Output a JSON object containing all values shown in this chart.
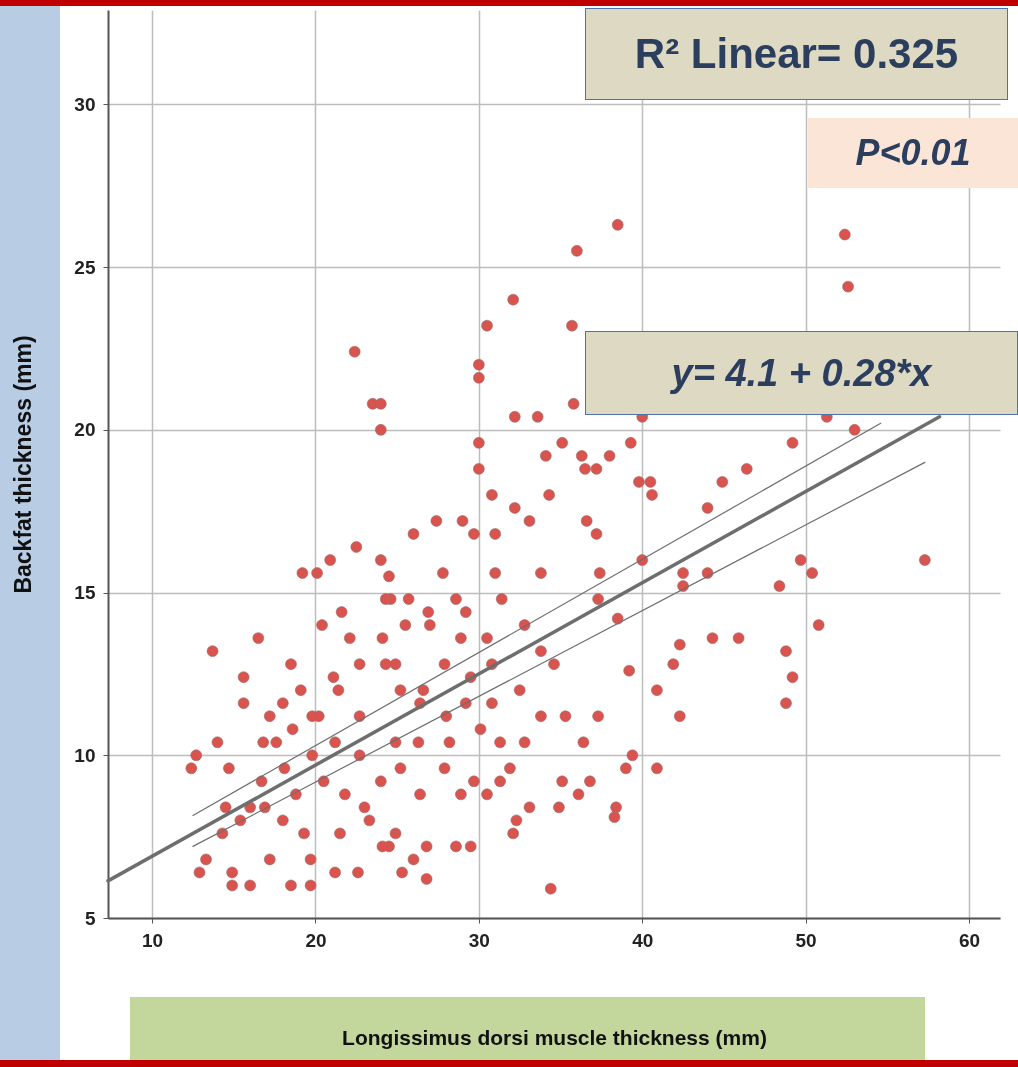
{
  "chart_data": {
    "type": "scatter",
    "xlabel": "Longissimus dorsi muscle thickness (mm)",
    "ylabel": "Backfat thickness (mm)",
    "annotations": [
      "R² Linear= 0.325",
      "P<0.01",
      "y= 4.1 + 0.28*x"
    ],
    "xlim": [
      7.3,
      61.9
    ],
    "ylim": [
      5,
      32.9
    ],
    "xticks": [
      10,
      20,
      30,
      40,
      50,
      60
    ],
    "yticks": [
      5,
      10,
      15,
      20,
      25,
      30
    ],
    "grid": true,
    "marker": "circle",
    "series": [
      {
        "color": "#d9534f",
        "x": [
          38.5,
          36.0,
          52.4,
          52.6,
          32.1,
          30.5,
          35.7,
          22.4,
          30.0,
          30.0,
          23.5,
          24.0,
          24.0,
          32.2,
          33.6,
          35.8,
          40.0,
          30.0,
          30.0,
          35.1,
          39.3,
          38.0,
          36.3,
          34.1,
          30.8,
          34.3,
          36.5,
          37.2,
          39.8,
          40.5,
          40.6,
          46.4,
          44.9,
          44.0,
          49.2,
          53.0,
          51.3,
          32.2,
          33.1,
          36.6,
          37.2,
          27.4,
          29.0,
          26.0,
          29.7,
          31.0,
          22.5,
          20.9,
          24.0,
          19.2,
          20.1,
          24.5,
          27.8,
          33.8,
          31.0,
          37.4,
          40.0,
          49.7,
          50.4,
          57.3,
          48.4,
          42.5,
          44.0,
          42.5,
          50.8,
          24.6,
          25.7,
          26.9,
          21.6,
          20.4,
          16.5,
          13.7,
          18.5,
          22.1,
          24.1,
          28.9,
          30.5,
          32.8,
          33.8,
          34.6,
          37.3,
          38.5,
          39.2,
          44.3,
          42.3,
          45.9,
          41.9,
          48.8,
          49.2,
          48.8,
          40.9,
          42.3,
          15.6,
          15.6,
          17.2,
          12.4,
          12.7,
          14.0,
          14.7,
          16.8,
          17.6,
          18.6,
          20.2,
          21.4,
          22.7,
          24.9,
          26.6,
          28.0,
          30.8,
          32.5,
          35.3,
          36.4,
          37.3,
          39.4,
          39.0,
          40.9,
          35.1,
          36.8,
          36.1,
          38.3,
          38.4,
          34.9,
          33.1,
          32.3,
          32.1,
          34.4,
          30.5,
          29.7,
          28.9,
          29.5,
          28.6,
          26.8,
          26.8,
          26.0,
          25.3,
          24.5,
          24.1,
          22.6,
          21.2,
          19.7,
          19.7,
          18.5,
          17.2,
          16.0,
          14.9,
          14.9,
          12.9,
          13.3,
          14.3,
          15.4,
          16.9,
          18.8,
          20.5,
          21.8,
          23.0,
          24.0,
          25.2,
          26.4,
          27.9,
          16.7,
          18.0,
          19.3,
          21.5,
          23.3,
          24.9,
          31.3,
          31.9,
          28.2,
          26.3,
          24.9,
          22.7,
          21.2,
          19.8,
          18.1,
          16.0,
          14.5,
          26.4,
          25.2,
          24.3,
          22.7,
          21.1,
          19.1,
          18.0,
          19.8,
          27.9,
          29.5,
          30.8,
          29.2,
          30.1,
          31.3,
          32.8,
          33.8,
          27.0,
          25.5,
          28.6,
          29.2,
          31.4,
          24.3
        ],
        "values": [
          26.3,
          25.5,
          26.0,
          24.4,
          24.0,
          23.2,
          23.2,
          22.4,
          22.0,
          21.6,
          20.8,
          20.8,
          20.0,
          20.4,
          20.4,
          20.8,
          20.4,
          19.6,
          18.8,
          19.6,
          19.6,
          19.2,
          19.2,
          19.2,
          18.0,
          18.0,
          18.8,
          18.8,
          18.4,
          18.4,
          18.0,
          18.8,
          18.4,
          17.6,
          19.6,
          20.0,
          20.4,
          17.6,
          17.2,
          17.2,
          16.8,
          17.2,
          17.2,
          16.8,
          16.8,
          16.8,
          16.4,
          16.0,
          16.0,
          15.6,
          15.6,
          15.5,
          15.6,
          15.6,
          15.6,
          15.6,
          16.0,
          16.0,
          15.6,
          16.0,
          15.2,
          15.6,
          15.6,
          15.2,
          14.0,
          14.8,
          14.8,
          14.4,
          14.4,
          14.0,
          13.6,
          13.2,
          12.8,
          13.6,
          13.6,
          13.6,
          13.6,
          14.0,
          13.2,
          12.8,
          14.8,
          14.2,
          12.6,
          13.6,
          13.4,
          13.6,
          12.8,
          13.2,
          12.4,
          11.6,
          12.0,
          11.2,
          12.4,
          11.6,
          11.2,
          9.6,
          10.0,
          10.4,
          9.6,
          10.4,
          10.4,
          10.8,
          11.2,
          12.0,
          11.2,
          12.8,
          12.0,
          11.2,
          11.6,
          12.0,
          11.2,
          10.4,
          11.2,
          10.0,
          9.6,
          9.6,
          9.2,
          9.2,
          8.8,
          8.1,
          8.4,
          8.4,
          8.4,
          8.0,
          7.6,
          5.9,
          8.8,
          9.2,
          8.8,
          7.2,
          7.2,
          7.2,
          6.2,
          6.8,
          6.4,
          7.2,
          7.2,
          6.4,
          6.4,
          6.8,
          6.0,
          6.0,
          6.8,
          6.0,
          6.0,
          6.4,
          6.4,
          6.8,
          7.6,
          8.0,
          8.4,
          8.8,
          9.2,
          8.8,
          8.4,
          9.2,
          9.6,
          8.8,
          9.6,
          9.2,
          8.0,
          7.6,
          7.6,
          8.0,
          7.6,
          9.2,
          9.6,
          10.4,
          10.4,
          10.4,
          10.0,
          10.4,
          10.0,
          9.6,
          8.4,
          8.4,
          11.6,
          12.0,
          12.8,
          12.8,
          12.4,
          12.0,
          11.6,
          11.2,
          12.8,
          12.4,
          12.8,
          11.6,
          10.8,
          10.4,
          10.4,
          11.2,
          14.0,
          14.0,
          14.8,
          14.4,
          14.8,
          14.8
        ]
      },
      {
        "type": "line",
        "color": "#6e6e6e",
        "marker": "none",
        "x": [
          7.3,
          58.2
        ],
        "values": [
          6.14,
          20.4
        ]
      },
      {
        "type": "line",
        "color": "#6e6e6e",
        "marker": "none",
        "x": [
          12.5,
          54.6
        ],
        "values": [
          8.15,
          20.2
        ]
      },
      {
        "type": "line",
        "color": "#6e6e6e",
        "marker": "none",
        "x": [
          12.5,
          57.3
        ],
        "values": [
          7.2,
          19.0
        ]
      }
    ]
  }
}
